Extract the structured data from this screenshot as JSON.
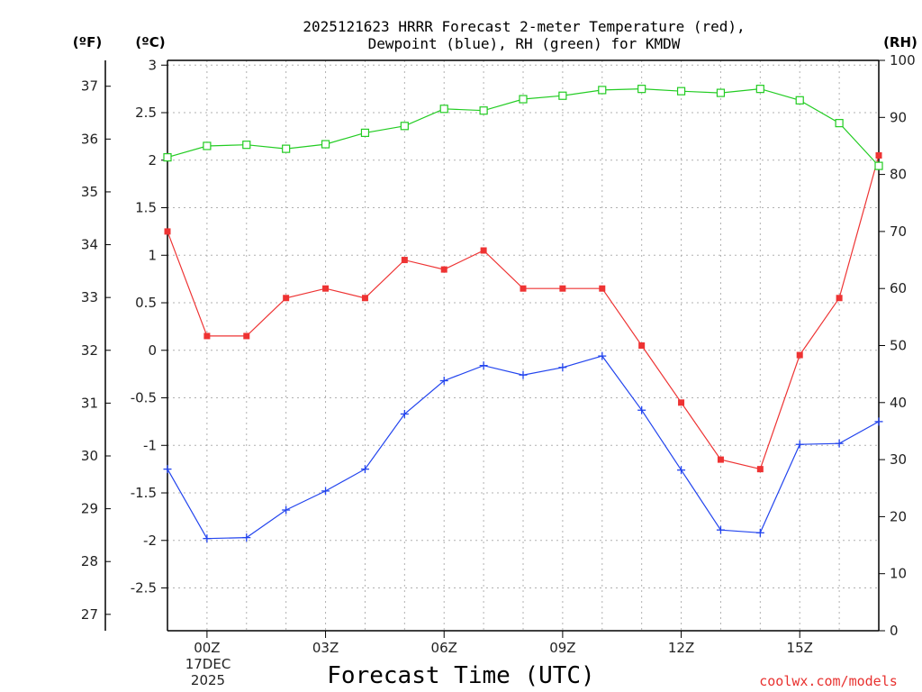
{
  "chart_data": {
    "type": "line",
    "title_line1": "2025121623 HRRR Forecast 2-meter Temperature (red),",
    "title_line2": "Dewpoint (blue), RH (green) for KMDW",
    "xlabel": "Forecast Time (UTC)",
    "credit": "coolwx.com/models",
    "units": {
      "fahrenheit": "(ºF)",
      "celsius": "(ºC)",
      "rh": "(RH)"
    },
    "x": [
      -1,
      0,
      1,
      2,
      3,
      4,
      5,
      6,
      7,
      8,
      9,
      10,
      11,
      12,
      13,
      14,
      15,
      16,
      17
    ],
    "xlim": [
      -1,
      17
    ],
    "x_ticks": [
      {
        "x": 0,
        "label": "00Z"
      },
      {
        "x": 3,
        "label": "03Z"
      },
      {
        "x": 6,
        "label": "06Z"
      },
      {
        "x": 9,
        "label": "09Z"
      },
      {
        "x": 12,
        "label": "12Z"
      },
      {
        "x": 15,
        "label": "15Z"
      }
    ],
    "date_label_line1": "17DEC",
    "date_label_line2": "2025",
    "left_axis_celsius": {
      "ylim": [
        -2.95,
        3.05
      ],
      "ticks": [
        "3",
        "2.5",
        "2",
        "1.5",
        "1",
        "0.5",
        "0",
        "-0.5",
        "-1",
        "-1.5",
        "-2",
        "-2.5"
      ],
      "tick_values": [
        3,
        2.5,
        2,
        1.5,
        1,
        0.5,
        0,
        -0.5,
        -1,
        -1.5,
        -2,
        -2.5
      ]
    },
    "left_axis_fahrenheit": {
      "ticks": [
        "37",
        "36",
        "35",
        "34",
        "33",
        "32",
        "31",
        "30",
        "29",
        "28",
        "27"
      ],
      "tick_values": [
        37,
        36,
        35,
        34,
        33,
        32,
        31,
        30,
        29,
        28,
        27
      ]
    },
    "right_axis_rh": {
      "ylim": [
        0,
        100
      ],
      "ticks": [
        "100",
        "90",
        "80",
        "70",
        "60",
        "50",
        "40",
        "30",
        "20",
        "10",
        "0"
      ],
      "tick_values": [
        100,
        90,
        80,
        70,
        60,
        50,
        40,
        30,
        20,
        10,
        0
      ]
    },
    "series": [
      {
        "name": "Temperature",
        "axis": "celsius",
        "color": "#ee3333",
        "marker": "filled-square",
        "values": [
          1.25,
          0.15,
          0.15,
          0.55,
          0.65,
          0.55,
          0.95,
          0.85,
          1.05,
          0.65,
          0.65,
          0.65,
          0.05,
          -0.55,
          -1.15,
          -1.25,
          -0.05,
          0.55,
          2.05
        ]
      },
      {
        "name": "Dewpoint",
        "axis": "celsius",
        "color": "#2244ee",
        "marker": "plus",
        "values": [
          -1.25,
          -1.98,
          -1.97,
          -1.68,
          -1.48,
          -1.25,
          -0.67,
          -0.32,
          -0.16,
          -0.26,
          -0.18,
          -0.06,
          -0.63,
          -1.26,
          -1.89,
          -1.92,
          -0.99,
          -0.98,
          -0.75
        ]
      },
      {
        "name": "RH",
        "axis": "rh",
        "color": "#22cc22",
        "marker": "open-square",
        "values": [
          83,
          85,
          85.2,
          84.5,
          85.3,
          87.3,
          88.5,
          91.5,
          91.2,
          93.2,
          93.8,
          94.8,
          95,
          94.6,
          94.3,
          95,
          93,
          89,
          81.5
        ]
      }
    ]
  }
}
